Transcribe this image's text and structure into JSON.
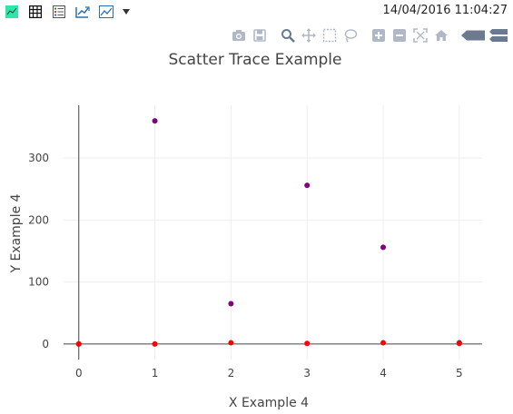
{
  "header": {
    "timestamp": "14/04/2016 11:04:27"
  },
  "toolbar_left": [
    {
      "name": "plotly-logo-icon"
    },
    {
      "name": "table-icon"
    },
    {
      "name": "list-icon"
    },
    {
      "name": "export-chart-icon"
    },
    {
      "name": "line-chart-icon"
    },
    {
      "name": "dropdown-arrow-icon"
    }
  ],
  "modebar": [
    {
      "name": "camera-icon"
    },
    {
      "name": "save-icon"
    },
    {
      "name": "zoom-icon"
    },
    {
      "name": "pan-icon"
    },
    {
      "name": "box-select-icon"
    },
    {
      "name": "lasso-select-icon"
    },
    {
      "name": "zoom-in-icon"
    },
    {
      "name": "zoom-out-icon"
    },
    {
      "name": "autoscale-icon"
    },
    {
      "name": "reset-axes-icon"
    },
    {
      "name": "hover-closest-icon"
    },
    {
      "name": "hover-compare-icon"
    }
  ],
  "colors": {
    "series_1": "#800080",
    "series_2": "#ff0000",
    "grid": "#eeeeee",
    "axis": "#444444"
  },
  "chart_data": {
    "type": "scatter",
    "title": "Scatter Trace Example",
    "xlabel": "X Example 4",
    "ylabel": "Y Example 4",
    "xlim": [
      -0.2,
      5.3
    ],
    "ylim": [
      -25,
      385
    ],
    "xticks": [
      0,
      1,
      2,
      3,
      4,
      5
    ],
    "yticks": [
      0,
      100,
      200,
      300
    ],
    "grid": true,
    "series": [
      {
        "x": [
          0,
          1,
          2,
          3,
          4,
          5
        ],
        "y": [
          0,
          360,
          65,
          256,
          156,
          2
        ],
        "color": "#800080"
      },
      {
        "x": [
          0,
          1,
          2,
          3,
          4,
          5
        ],
        "y": [
          0,
          0,
          2,
          1,
          2,
          1
        ],
        "color": "#ff0000"
      }
    ]
  }
}
